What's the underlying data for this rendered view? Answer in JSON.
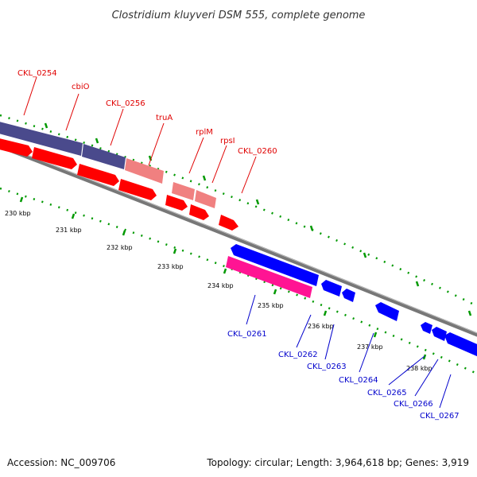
{
  "title": "Clostridium kluyveri DSM 555, complete genome",
  "footer": {
    "accession": "Accession: NC_009706",
    "stats": "Topology: circular; Length: 3,964,618 bp; Genes: 3,919"
  },
  "colors": {
    "forward_gene": "#ff0000",
    "reverse_gene": "#0000ff",
    "forward_feature_dark": "#4a4a8c",
    "forward_feature_light": "#f08080",
    "reverse_feature": "#ff1493",
    "backbone": "#777777",
    "tick_dots": "#009900",
    "forward_label": "#e00000",
    "reverse_label": "#0000cc"
  },
  "kbp_labels": [
    "230 kbp",
    "231 kbp",
    "232 kbp",
    "233 kbp",
    "234 kbp",
    "235 kbp",
    "236 kbp",
    "237 kbp",
    "238 kbp"
  ],
  "forward_labels": [
    "CKL_0254",
    "cbiO",
    "CKL_0256",
    "truA",
    "rplM",
    "rpsI",
    "CKL_0260"
  ],
  "reverse_labels": [
    "CKL_0261",
    "CKL_0262",
    "CKL_0263",
    "CKL_0264",
    "CKL_0265",
    "CKL_0266",
    "CKL_0267"
  ]
}
